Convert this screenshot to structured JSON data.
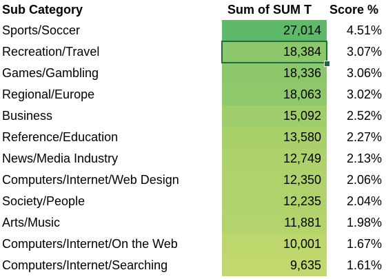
{
  "table": {
    "header": [
      "Sub Category",
      "Sum of SUM T",
      "Score %"
    ],
    "rows": [
      {
        "sub_category": "Sports/Soccer",
        "sum": "27,014",
        "score": "4.51%",
        "color": "#5eb96b"
      },
      {
        "sub_category": "Recreation/Travel",
        "sum": "18,384",
        "score": "3.07%",
        "color": "#8cc76b"
      },
      {
        "sub_category": "Games/Gambling",
        "sum": "18,336",
        "score": "3.06%",
        "color": "#8dc76b"
      },
      {
        "sub_category": "Regional/Europe",
        "sum": "18,063",
        "score": "3.02%",
        "color": "#8fc86b"
      },
      {
        "sub_category": "Business",
        "sum": "15,092",
        "score": "2.52%",
        "color": "#a0cd6b"
      },
      {
        "sub_category": "Reference/Education",
        "sum": "13,580",
        "score": "2.27%",
        "color": "#a8d06b"
      },
      {
        "sub_category": "News/Media Industry",
        "sum": "12,749",
        "score": "2.13%",
        "color": "#add16c"
      },
      {
        "sub_category": "Computers/Internet/Web Design",
        "sum": "12,350",
        "score": "2.06%",
        "color": "#afd26c"
      },
      {
        "sub_category": "Society/People",
        "sum": "12,235",
        "score": "2.04%",
        "color": "#b0d26c"
      },
      {
        "sub_category": "Arts/Music",
        "sum": "11,881",
        "score": "1.98%",
        "color": "#b3d36c"
      },
      {
        "sub_category": "Computers/Internet/On the Web",
        "sum": "10,001",
        "score": "1.67%",
        "color": "#bdd76d"
      },
      {
        "sub_category": "Computers/Internet/Searching",
        "sum": "9,635",
        "score": "1.61%",
        "color": "#c0d86d"
      }
    ]
  }
}
